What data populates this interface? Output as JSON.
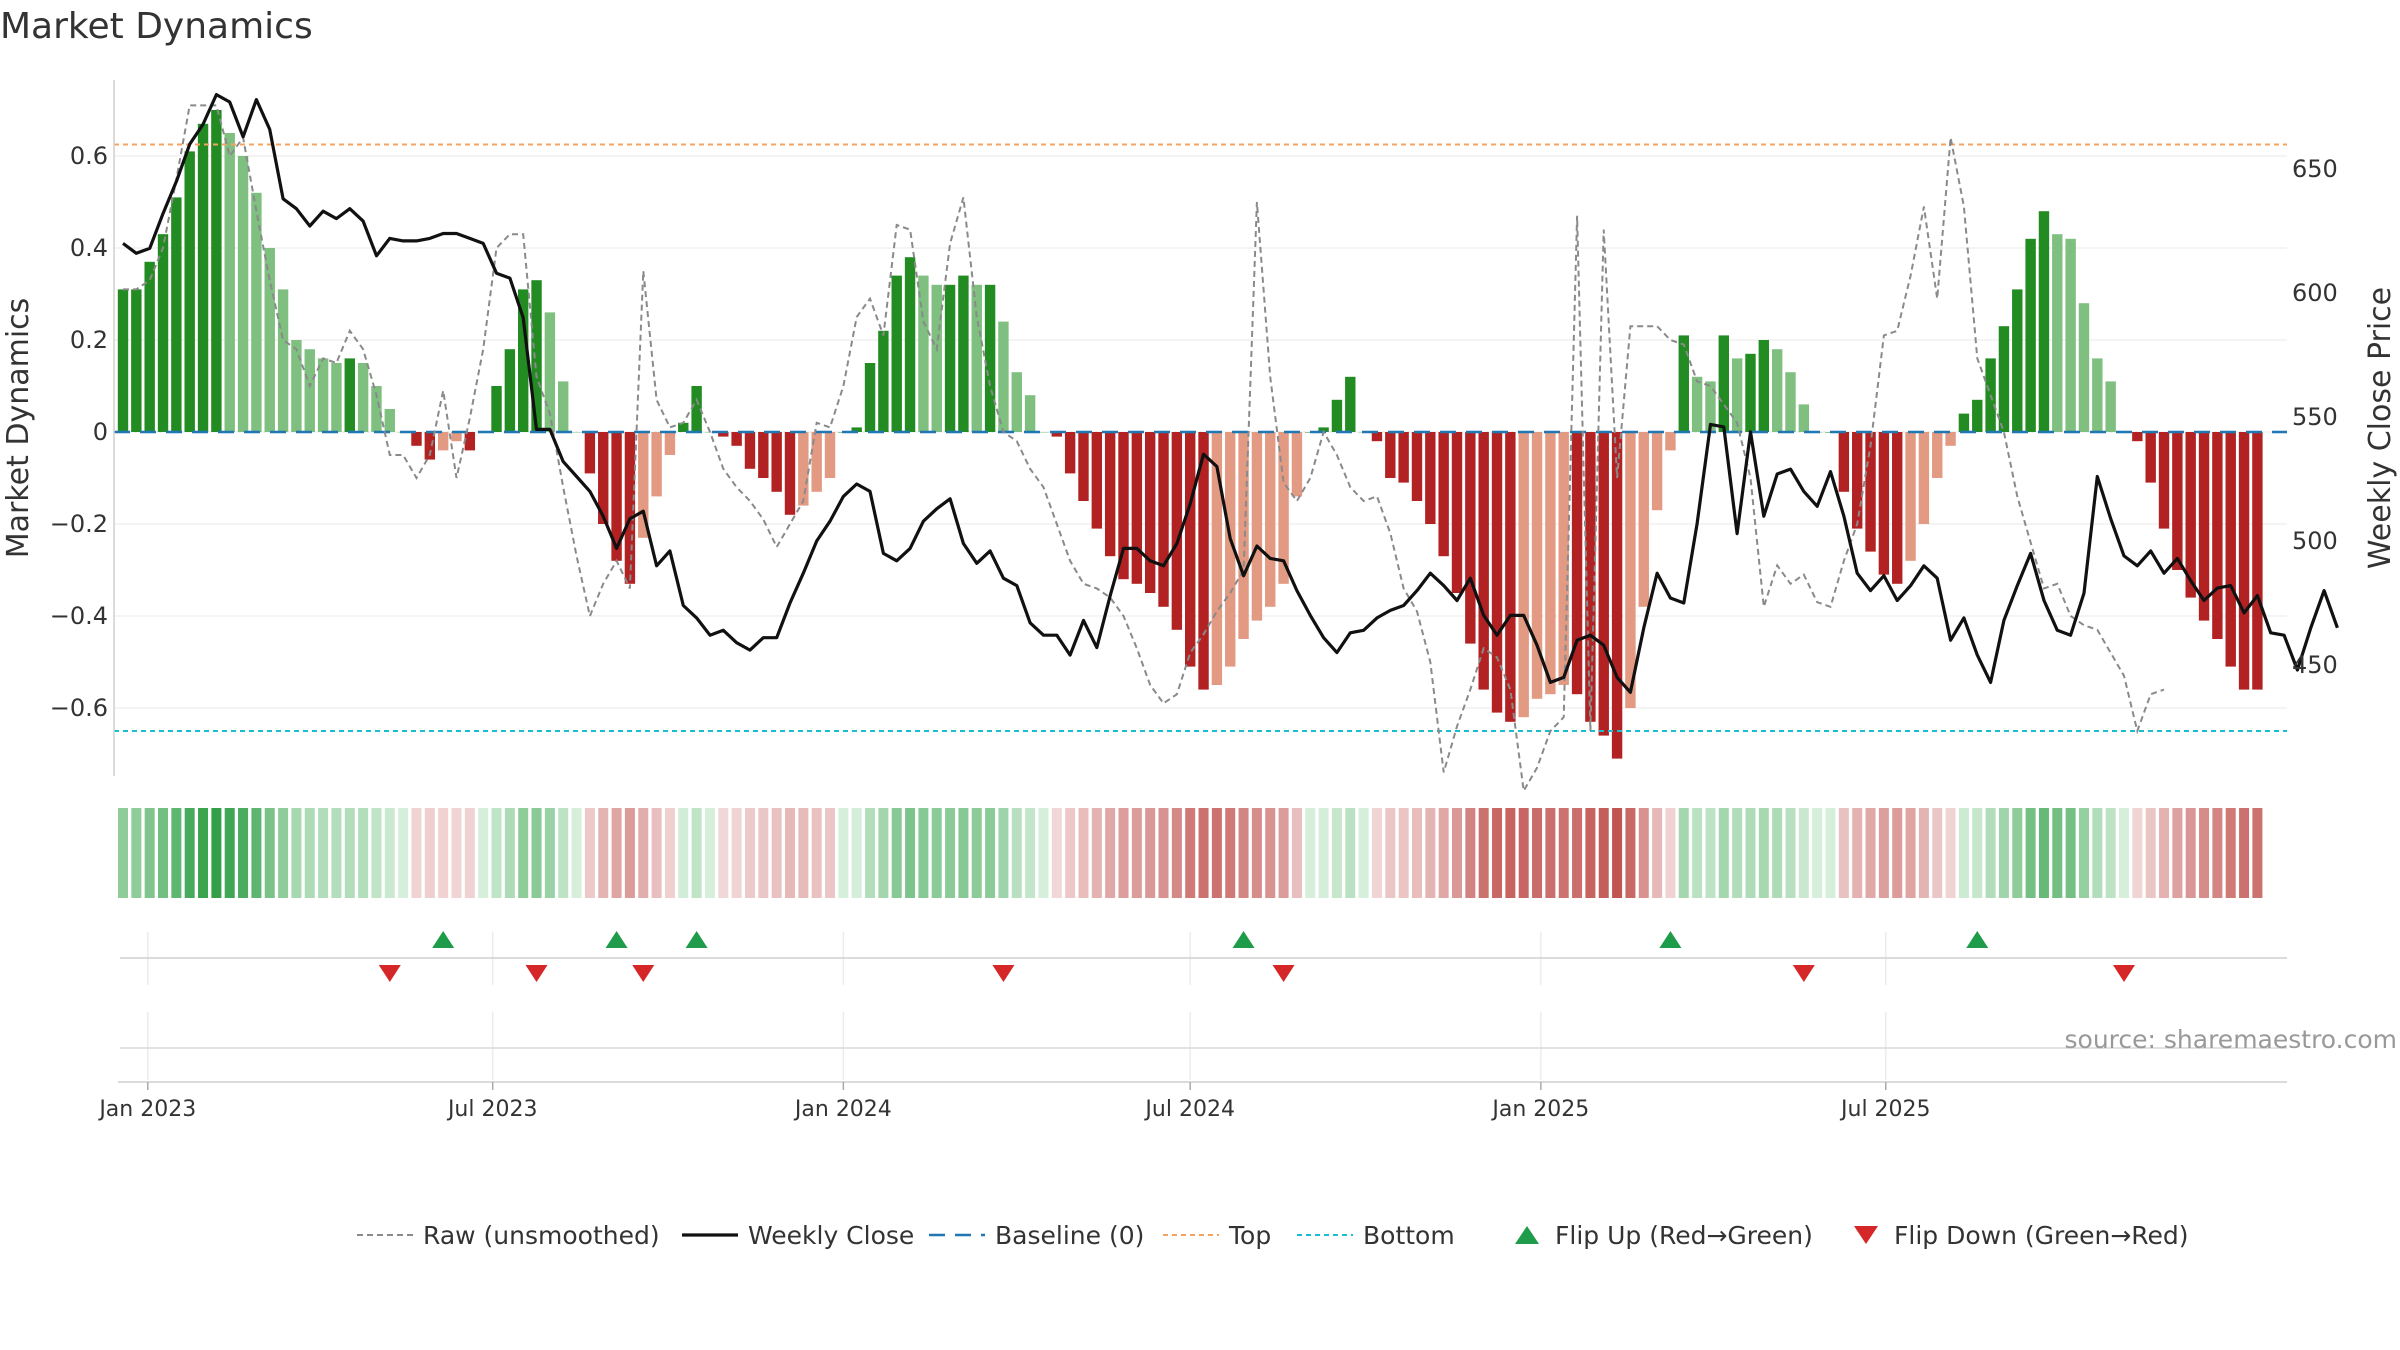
{
  "chart_data": {
    "type": "bar",
    "title": "Market Dynamics",
    "ylabel": "Market Dynamics",
    "y2label": "Weekly Close Price",
    "ylim": [
      -0.76,
      0.76
    ],
    "y2lim": [
      402,
      685
    ],
    "xlim": [
      "2022-12-19",
      "2025-09-15"
    ],
    "yticks": [
      {
        "v": 0.6,
        "label": "0.6"
      },
      {
        "v": 0.4,
        "label": "0.4"
      },
      {
        "v": 0.2,
        "label": "0.2"
      },
      {
        "v": 0,
        "label": "0"
      },
      {
        "v": -0.2,
        "label": "−0.2"
      },
      {
        "v": -0.4,
        "label": "−0.4"
      },
      {
        "v": -0.6,
        "label": "−0.6"
      }
    ],
    "y2ticks": [
      {
        "v": 650,
        "label": "650"
      },
      {
        "v": 600,
        "label": "600"
      },
      {
        "v": 550,
        "label": "550"
      },
      {
        "v": 500,
        "label": "500"
      },
      {
        "v": 450,
        "label": "450"
      }
    ],
    "xticks": [
      {
        "date": "2023-01-01",
        "label": "Jan 2023"
      },
      {
        "date": "2023-07-01",
        "label": "Jul 2023"
      },
      {
        "date": "2024-01-01",
        "label": "Jan 2024"
      },
      {
        "date": "2024-07-01",
        "label": "Jul 2024"
      },
      {
        "date": "2025-01-01",
        "label": "Jan 2025"
      },
      {
        "date": "2025-07-01",
        "label": "Jul 2025"
      }
    ],
    "start_date": "2022-12-19",
    "top_level": 0.625,
    "bottom_level": -0.65,
    "baseline_level": 0,
    "bar_values": [
      0.31,
      0.31,
      0.37,
      0.43,
      0.51,
      0.61,
      0.67,
      0.7,
      0.65,
      0.6,
      0.52,
      0.4,
      0.31,
      0.2,
      0.18,
      0.16,
      0.15,
      0.16,
      0.15,
      0.1,
      0.05,
      0.0,
      -0.03,
      -0.06,
      -0.04,
      -0.02,
      -0.04,
      0.0,
      0.1,
      0.18,
      0.31,
      0.33,
      0.26,
      0.11,
      0.0,
      -0.09,
      -0.2,
      -0.28,
      -0.33,
      -0.23,
      -0.14,
      -0.05,
      0.02,
      0.1,
      0.0,
      -0.01,
      -0.03,
      -0.08,
      -0.1,
      -0.13,
      -0.18,
      -0.16,
      -0.13,
      -0.1,
      0.0,
      0.01,
      0.15,
      0.22,
      0.34,
      0.38,
      0.34,
      0.32,
      0.32,
      0.34,
      0.32,
      0.32,
      0.24,
      0.13,
      0.08,
      0.0,
      -0.01,
      -0.09,
      -0.15,
      -0.21,
      -0.27,
      -0.32,
      -0.33,
      -0.35,
      -0.38,
      -0.43,
      -0.51,
      -0.56,
      -0.55,
      -0.51,
      -0.45,
      -0.41,
      -0.38,
      -0.33,
      -0.14,
      0.0,
      0.01,
      0.07,
      0.12,
      0.0,
      -0.02,
      -0.1,
      -0.11,
      -0.15,
      -0.2,
      -0.27,
      -0.35,
      -0.46,
      -0.56,
      -0.61,
      -0.63,
      -0.62,
      -0.58,
      -0.57,
      -0.55,
      -0.57,
      -0.63,
      -0.66,
      -0.71,
      -0.6,
      -0.38,
      -0.17,
      -0.04,
      0.21,
      0.12,
      0.11,
      0.21,
      0.16,
      0.17,
      0.2,
      0.18,
      0.13,
      0.06,
      0.0,
      0.0,
      -0.13,
      -0.21,
      -0.26,
      -0.31,
      -0.33,
      -0.28,
      -0.2,
      -0.1,
      -0.03,
      0.04,
      0.07,
      0.16,
      0.23,
      0.31,
      0.42,
      0.48,
      0.43,
      0.42,
      0.28,
      0.16,
      0.11,
      0.0,
      -0.02,
      -0.11,
      -0.21,
      -0.3,
      -0.36,
      -0.41,
      -0.45,
      -0.51,
      -0.56,
      -0.56
    ],
    "raw_values": [
      0.31,
      0.31,
      0.33,
      0.4,
      0.55,
      0.71,
      0.71,
      0.71,
      0.6,
      0.64,
      0.48,
      0.33,
      0.2,
      0.18,
      0.1,
      0.16,
      0.15,
      0.22,
      0.18,
      0.08,
      -0.05,
      -0.05,
      -0.1,
      -0.05,
      0.09,
      -0.1,
      0.03,
      0.18,
      0.4,
      0.43,
      0.43,
      0.12,
      0.04,
      -0.12,
      -0.27,
      -0.4,
      -0.33,
      -0.28,
      -0.34,
      0.35,
      0.07,
      0.01,
      0.02,
      0.07,
      0.0,
      -0.08,
      -0.12,
      -0.15,
      -0.19,
      -0.25,
      -0.2,
      -0.15,
      0.02,
      0.01,
      0.1,
      0.25,
      0.29,
      0.21,
      0.45,
      0.44,
      0.24,
      0.18,
      0.41,
      0.51,
      0.25,
      0.1,
      0.0,
      -0.02,
      -0.08,
      -0.12,
      -0.2,
      -0.28,
      -0.33,
      -0.34,
      -0.36,
      -0.4,
      -0.47,
      -0.55,
      -0.59,
      -0.57,
      -0.48,
      -0.44,
      -0.39,
      -0.35,
      -0.3,
      0.5,
      0.12,
      -0.11,
      -0.15,
      -0.1,
      0.0,
      -0.05,
      -0.12,
      -0.15,
      -0.14,
      -0.22,
      -0.34,
      -0.39,
      -0.5,
      -0.74,
      -0.64,
      -0.56,
      -0.47,
      -0.49,
      -0.56,
      -0.78,
      -0.73,
      -0.65,
      -0.62,
      0.47,
      -0.65,
      0.44,
      -0.1,
      0.23,
      0.23,
      0.23,
      0.2,
      0.19,
      0.11,
      0.1,
      0.06,
      0.02,
      -0.1,
      -0.38,
      -0.29,
      -0.33,
      -0.31,
      -0.37,
      -0.38,
      -0.28,
      -0.2,
      -0.03,
      0.21,
      0.22,
      0.34,
      0.49,
      0.29,
      0.64,
      0.49,
      0.16,
      0.08,
      0.0,
      -0.14,
      -0.24,
      -0.34,
      -0.33,
      -0.4,
      -0.42,
      -0.43,
      -0.48,
      -0.53,
      -0.65,
      -0.57,
      -0.56
    ],
    "close_values": [
      620,
      616,
      618,
      632,
      645,
      660,
      668,
      680,
      677,
      663,
      678,
      666,
      638,
      634,
      627,
      633,
      630,
      634,
      629,
      615,
      622,
      621,
      621,
      622,
      624,
      624,
      622,
      620,
      608,
      606,
      590,
      545,
      545,
      532,
      526,
      520,
      510,
      497,
      509,
      512,
      490,
      496,
      474,
      469,
      462,
      464,
      459,
      456,
      461,
      461,
      475,
      487,
      500,
      508,
      518,
      523,
      520,
      495,
      492,
      497,
      508,
      513,
      517,
      499,
      491,
      496,
      485,
      482,
      467,
      462,
      462,
      454,
      468,
      457,
      478,
      497,
      497,
      492,
      490,
      499,
      515,
      535,
      530,
      501,
      486,
      498,
      493,
      492,
      480,
      470,
      461,
      455,
      463,
      464,
      469,
      472,
      474,
      480,
      487,
      482,
      476,
      485,
      470,
      462,
      470,
      470,
      458,
      443,
      445,
      460,
      462,
      458,
      445,
      439,
      465,
      487,
      477,
      475,
      507,
      547,
      546,
      503,
      544,
      510,
      527,
      529,
      520,
      514,
      528,
      510,
      487,
      480,
      486,
      476,
      482,
      490,
      485,
      460,
      469,
      454,
      443,
      468,
      482,
      495,
      476,
      464,
      462,
      479,
      526,
      509,
      494,
      490,
      496,
      487,
      493,
      484,
      476,
      481,
      482,
      471,
      478,
      463,
      462,
      448,
      465,
      480,
      465
    ],
    "flip_up_weeks": [
      24,
      37,
      43,
      84,
      116,
      139
    ],
    "flip_down_weeks": [
      20,
      31,
      39,
      66,
      87,
      126,
      150
    ],
    "legend": [
      {
        "key": "raw",
        "label": "Raw (unsmoothed)"
      },
      {
        "key": "close",
        "label": "Weekly Close"
      },
      {
        "key": "baseline",
        "label": "Baseline (0)"
      },
      {
        "key": "top",
        "label": "Top"
      },
      {
        "key": "bottom",
        "label": "Bottom"
      },
      {
        "key": "flip_up",
        "label": "Flip Up (Red→Green)"
      },
      {
        "key": "flip_down",
        "label": "Flip Down (Green→Red)"
      }
    ],
    "source_text": "source: sharemaestro.com"
  },
  "colors": {
    "strong_green": "#228B22",
    "light_green": "#7FBF7F",
    "strong_red": "#B22222",
    "light_red": "#E39A82",
    "close_line": "#111111",
    "raw_line": "#8a8a8a",
    "baseline": "#1f77b4",
    "top": "#f4a460",
    "bottom": "#17becf",
    "flip_up": "#1e9c4a",
    "flip_down": "#d62728"
  }
}
